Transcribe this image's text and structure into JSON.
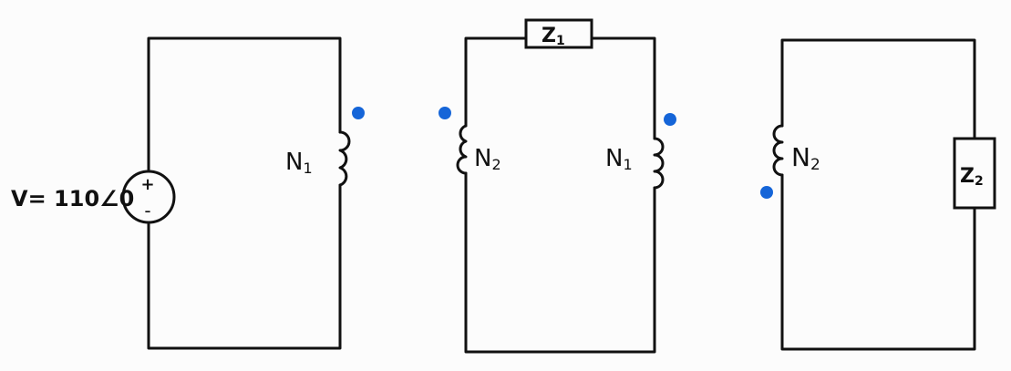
{
  "source": {
    "label": "V= 110∠0",
    "plus": "+",
    "minus": "-"
  },
  "circuit1": {
    "coil_label_base": "N",
    "coil_label_sub": "1"
  },
  "circuit2": {
    "impedance_base": "Z",
    "impedance_sub": "1",
    "left_coil_base": "N",
    "left_coil_sub": "2",
    "right_coil_base": "N",
    "right_coil_sub": "1"
  },
  "circuit3": {
    "coil_label_base": "N",
    "coil_label_sub": "2",
    "impedance_base": "Z",
    "impedance_sub": "2"
  },
  "colors": {
    "dot": "#1565d8",
    "wire": "#111111",
    "background": "#fcfcfc"
  }
}
